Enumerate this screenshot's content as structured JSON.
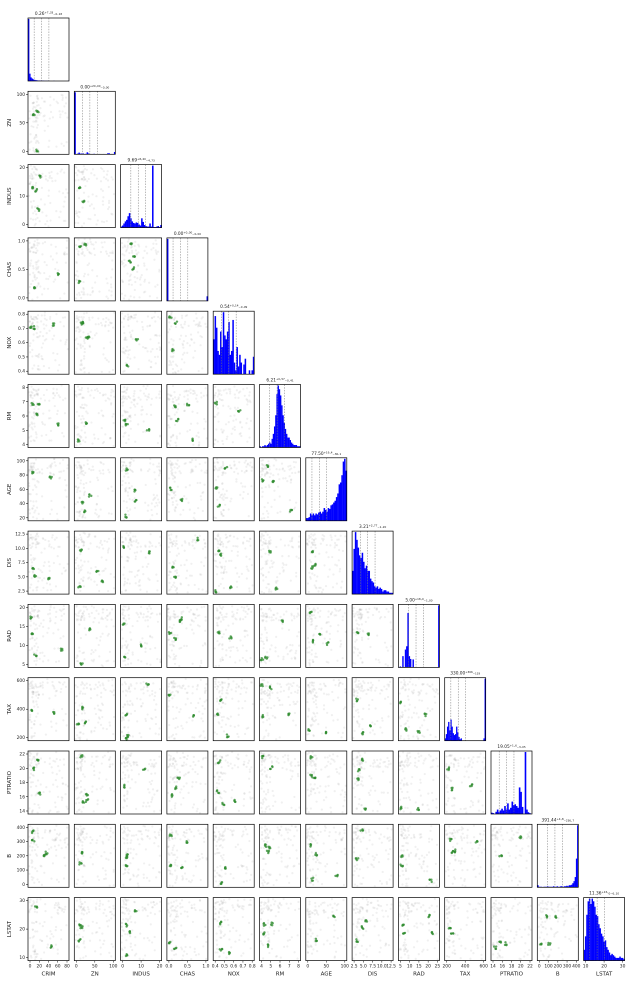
{
  "chart_data": {
    "type": "corner-plot",
    "variables": [
      "CRIM",
      "ZN",
      "INDUS",
      "CHAS",
      "NOX",
      "RM",
      "AGE",
      "DIS",
      "RAD",
      "TAX",
      "PTRATIO",
      "B",
      "LSTAT"
    ],
    "hist_titles": [
      "0.26⁺⁷·³³₋₀.₁₈",
      "0.00⁺²⁰·⁰⁰₋₀.₀₀",
      "9.69⁺⁸·⁴⁰₋₄.₇₃",
      "0.00⁺⁰·⁰⁰₋₀.₀₀",
      "0.54⁺⁰·¹⁴₋₀.₀₉",
      "6.21⁺⁰·⁵⁷₋₀.₄₁",
      "77.50⁺¹⁹·⁴₋₃₆.₁",
      "3.21⁺²·⁷⁷₋₁.₂₀",
      "5.00⁺¹⁸·⁰₋₁.₀₀",
      "330.00⁺³⁶⁶₋₁₁₉",
      "19.05⁺¹·⁶₋₃.₀₅",
      "391.44⁺⁴·⁸₋₂₃₆.₇",
      "11.36⁺¹³·₀₋₆.₁₀"
    ],
    "ranges": [
      [
        0,
        88
      ],
      [
        0,
        100
      ],
      [
        0,
        28
      ],
      [
        0,
        1
      ],
      [
        0.38,
        0.88
      ],
      [
        3.5,
        8.8
      ],
      [
        2,
        100
      ],
      [
        1,
        12.5
      ],
      [
        0,
        24
      ],
      [
        180,
        711
      ],
      [
        12.5,
        22
      ],
      [
        0,
        400
      ],
      [
        1.5,
        38
      ]
    ],
    "x_ticks": [
      [
        "0",
        "20",
        "40",
        "60",
        "80"
      ],
      [
        "0",
        "50",
        "100"
      ],
      [
        "0",
        "10",
        "20"
      ],
      [
        "0.0",
        "0.5",
        "1.0"
      ],
      [
        "0.4",
        "0.5",
        "0.6",
        "0.7",
        "0.8"
      ],
      [
        "4",
        "5",
        "6",
        "7",
        "8"
      ],
      [
        "0",
        "50",
        "100"
      ],
      [
        "2.5",
        "5.0",
        "7.5",
        "10.0",
        "12.5"
      ],
      [
        "5",
        "10",
        "15",
        "20",
        "25"
      ],
      [
        "200",
        "400",
        "600"
      ],
      [
        "14",
        "16",
        "18",
        "20",
        "22"
      ],
      [
        "0",
        "100",
        "200",
        "300",
        "400"
      ],
      [
        "10",
        "20",
        "30"
      ]
    ],
    "y_ticks": [
      [],
      [
        "0",
        "50",
        "100"
      ],
      [
        "0",
        "10",
        "20"
      ],
      [
        "0.0",
        "0.5",
        "1.0"
      ],
      [
        "0.4",
        "0.5",
        "0.6",
        "0.7",
        "0.8"
      ],
      [
        "4",
        "5",
        "6",
        "7",
        "8"
      ],
      [
        "20",
        "40",
        "60",
        "80",
        "100"
      ],
      [
        "2.5",
        "5.0",
        "7.5",
        "10.0",
        "12.5"
      ],
      [
        "5",
        "10",
        "15",
        "20"
      ],
      [
        "200",
        "400",
        "600"
      ],
      [
        "14",
        "16",
        "18",
        "20",
        "22"
      ],
      [
        "0",
        "100",
        "200",
        "300",
        "400"
      ],
      [
        "10",
        "20",
        "30"
      ]
    ],
    "hist_counts": [
      [
        380,
        45,
        22,
        15,
        10,
        7,
        5,
        4,
        3,
        3,
        2,
        2,
        2,
        1,
        1,
        1,
        1,
        0,
        0,
        0,
        0,
        1,
        0,
        0,
        0,
        0,
        0,
        0,
        0,
        0,
        0,
        0,
        0,
        1
      ],
      [
        372,
        0,
        4,
        10,
        4,
        5,
        5,
        2,
        3,
        12,
        5,
        2,
        2,
        2,
        3,
        1,
        0,
        1,
        2,
        1,
        1,
        2,
        1,
        1,
        6,
        6,
        2,
        2,
        2,
        14
      ],
      [
        2,
        4,
        8,
        12,
        15,
        22,
        28,
        18,
        12,
        9,
        8,
        10,
        9,
        6,
        4,
        18,
        11,
        5,
        3,
        2,
        2,
        8,
        2,
        120,
        1,
        1,
        2,
        3,
        1,
        5
      ],
      [
        471,
        0,
        0,
        0,
        0,
        0,
        0,
        0,
        0,
        0,
        0,
        0,
        0,
        0,
        0,
        0,
        0,
        0,
        0,
        0,
        0,
        0,
        0,
        0,
        0,
        0,
        0,
        0,
        0,
        35
      ],
      [
        18,
        30,
        24,
        12,
        10,
        22,
        14,
        32,
        20,
        18,
        22,
        27,
        10,
        12,
        28,
        6,
        2,
        14,
        4,
        10,
        6,
        0,
        5,
        8,
        0,
        0,
        2,
        0,
        2,
        9
      ],
      [
        1,
        0,
        1,
        1,
        2,
        1,
        2,
        3,
        4,
        3,
        7,
        11,
        17,
        26,
        43,
        50,
        47,
        42,
        34,
        26,
        20,
        15,
        11,
        8,
        8,
        6,
        4,
        3,
        2,
        2,
        2,
        1,
        1,
        1
      ],
      [
        3,
        3,
        4,
        8,
        6,
        8,
        6,
        8,
        7,
        9,
        10,
        8,
        10,
        14,
        12,
        10,
        14,
        13,
        17,
        18,
        20,
        22,
        26,
        30,
        40,
        42,
        50,
        65,
        68,
        55
      ],
      [
        18,
        35,
        48,
        42,
        36,
        30,
        28,
        32,
        25,
        20,
        22,
        18,
        18,
        12,
        10,
        9,
        6,
        5,
        6,
        4,
        5,
        4,
        2,
        3,
        3,
        2,
        2,
        1,
        1,
        1
      ],
      [
        0,
        2,
        0,
        24,
        0,
        38,
        45,
        116,
        24,
        18,
        0,
        17,
        0,
        0,
        0,
        0,
        0,
        0,
        0,
        0,
        0,
        0,
        0,
        0,
        0,
        0,
        0,
        0,
        0,
        0,
        0,
        132
      ],
      [
        5,
        14,
        30,
        40,
        22,
        45,
        30,
        16,
        12,
        14,
        30,
        18,
        8,
        3,
        5,
        0,
        0,
        0,
        0,
        0,
        0,
        0,
        0,
        0,
        0,
        0,
        0,
        0,
        0,
        0,
        0,
        0,
        0,
        0,
        5,
        132
      ],
      [
        3,
        2,
        0,
        5,
        10,
        4,
        8,
        12,
        8,
        18,
        10,
        24,
        10,
        14,
        28,
        20,
        22,
        18,
        14,
        60,
        50,
        16,
        0,
        140,
        10,
        4,
        2,
        0
      ],
      [
        4,
        1,
        1,
        1,
        0,
        1,
        1,
        1,
        2,
        1,
        1,
        1,
        1,
        2,
        1,
        1,
        2,
        1,
        1,
        2,
        2,
        1,
        2,
        2,
        3,
        2,
        4,
        4,
        5,
        8,
        12,
        20,
        56,
        121
      ],
      [
        8,
        18,
        34,
        44,
        46,
        42,
        46,
        44,
        40,
        34,
        33,
        27,
        24,
        20,
        18,
        14,
        15,
        10,
        8,
        6,
        4,
        5,
        4,
        3,
        2,
        2,
        2,
        3,
        2,
        2,
        1
      ]
    ]
  }
}
